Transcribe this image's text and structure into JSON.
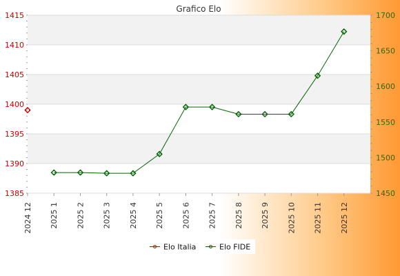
{
  "chart_data": {
    "type": "line",
    "title": "Grafico Elo",
    "categories": [
      "2024 12",
      "2025 1",
      "2025 2",
      "2025 3",
      "2025 4",
      "2025 5",
      "2025 6",
      "2025 7",
      "2025 8",
      "2025 9",
      "2025 10",
      "2025 11",
      "2025 12"
    ],
    "y_left": {
      "min": 1385,
      "max": 1415,
      "ticks": [
        1385,
        1390,
        1395,
        1400,
        1405,
        1410,
        1415
      ],
      "color": "#cc0000"
    },
    "y_right": {
      "min": 1450,
      "max": 1700,
      "ticks": [
        1450,
        1500,
        1550,
        1600,
        1650,
        1700
      ],
      "color": "#336600"
    },
    "series": [
      {
        "name": "Elo Italia",
        "axis": "left",
        "color": "#cc0000",
        "values": [
          1399,
          null,
          null,
          null,
          null,
          null,
          null,
          null,
          null,
          null,
          null,
          null,
          null
        ]
      },
      {
        "name": "Elo FIDE",
        "axis": "right",
        "color": "#006600",
        "values": [
          null,
          1479,
          1479,
          1478,
          1478,
          1505,
          1571,
          1571,
          1561,
          1561,
          1561,
          1615,
          1677
        ]
      }
    ],
    "grid": true,
    "legend_position": "bottom"
  }
}
